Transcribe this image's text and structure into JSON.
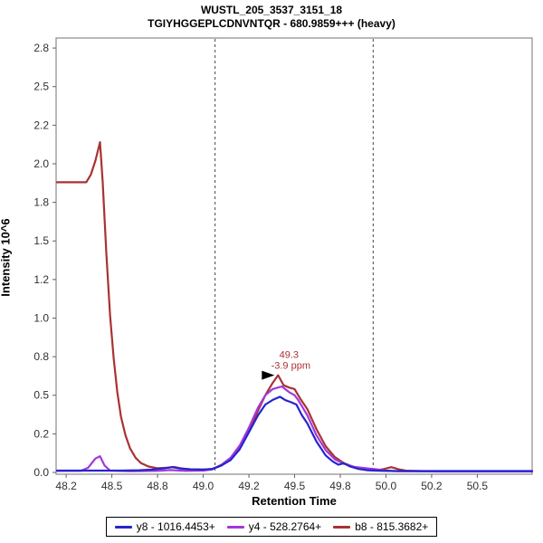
{
  "header": {
    "title": "WUSTL_205_3537_3151_18",
    "subtitle": "TGIYHGGEPLCDNVNTQR - 680.9859+++ (heavy)"
  },
  "chart_data": {
    "type": "line",
    "title": "WUSTL_205_3537_3151_18",
    "subtitle": "TGIYHGGEPLCDNVNTQR - 680.9859+++ (heavy)",
    "xlabel": "Retention Time",
    "ylabel": "Intensity 10^6",
    "xlim": [
      48.195,
      50.8
    ],
    "ylim": [
      0,
      2.815
    ],
    "grid": false,
    "legend_position": "bottom",
    "x_ticks": [
      {
        "label": "48.2",
        "value": 48.25
      },
      {
        "label": "48.5",
        "value": 48.5
      },
      {
        "label": "48.8",
        "value": 48.75
      },
      {
        "label": "49.0",
        "value": 49.0
      },
      {
        "label": "49.2",
        "value": 49.25
      },
      {
        "label": "49.5",
        "value": 49.5
      },
      {
        "label": "49.8",
        "value": 49.75
      },
      {
        "label": "50.0",
        "value": 50.0
      },
      {
        "label": "50.2",
        "value": 50.25
      },
      {
        "label": "50.5",
        "value": 50.5
      }
    ],
    "y_ticks": [
      {
        "label": "0.0",
        "value": 0.0
      },
      {
        "label": "0.2",
        "value": 0.25
      },
      {
        "label": "0.5",
        "value": 0.5
      },
      {
        "label": "0.8",
        "value": 0.75
      },
      {
        "label": "1.0",
        "value": 1.0
      },
      {
        "label": "1.2",
        "value": 1.25
      },
      {
        "label": "1.5",
        "value": 1.5
      },
      {
        "label": "1.8",
        "value": 1.75
      },
      {
        "label": "2.0",
        "value": 2.0
      },
      {
        "label": "2.2",
        "value": 2.25
      },
      {
        "label": "2.5",
        "value": 2.5
      },
      {
        "label": "2.8",
        "value": 2.75
      }
    ],
    "peak_boundaries": [
      49.065,
      49.93
    ],
    "annotation": {
      "rt_label": "49.3",
      "ppm_label": "-3.9 ppm",
      "anchor_x": 49.4,
      "anchor_y": 0.63,
      "color": "#A93232"
    },
    "series": [
      {
        "id": "b8",
        "name": "b8 - 815.3682+",
        "color": "#A93232",
        "points": [
          [
            48.2,
            1.88
          ],
          [
            48.36,
            1.88
          ],
          [
            48.385,
            1.93
          ],
          [
            48.41,
            2.02
          ],
          [
            48.435,
            2.14
          ],
          [
            48.45,
            1.88
          ],
          [
            48.47,
            1.42
          ],
          [
            48.49,
            1.02
          ],
          [
            48.51,
            0.74
          ],
          [
            48.53,
            0.52
          ],
          [
            48.55,
            0.36
          ],
          [
            48.575,
            0.24
          ],
          [
            48.6,
            0.155
          ],
          [
            48.63,
            0.095
          ],
          [
            48.66,
            0.06
          ],
          [
            48.7,
            0.038
          ],
          [
            48.75,
            0.027
          ],
          [
            48.8,
            0.03
          ],
          [
            48.84,
            0.035
          ],
          [
            48.88,
            0.026
          ],
          [
            48.93,
            0.02
          ],
          [
            49.0,
            0.018
          ],
          [
            49.05,
            0.022
          ],
          [
            49.1,
            0.045
          ],
          [
            49.15,
            0.085
          ],
          [
            49.2,
            0.16
          ],
          [
            49.25,
            0.27
          ],
          [
            49.3,
            0.4
          ],
          [
            49.34,
            0.5
          ],
          [
            49.38,
            0.58
          ],
          [
            49.41,
            0.63
          ],
          [
            49.44,
            0.565
          ],
          [
            49.47,
            0.55
          ],
          [
            49.5,
            0.54
          ],
          [
            49.53,
            0.48
          ],
          [
            49.57,
            0.41
          ],
          [
            49.62,
            0.28
          ],
          [
            49.67,
            0.17
          ],
          [
            49.72,
            0.1
          ],
          [
            49.77,
            0.06
          ],
          [
            49.83,
            0.033
          ],
          [
            49.9,
            0.018
          ],
          [
            49.95,
            0.014
          ],
          [
            49.99,
            0.022
          ],
          [
            50.03,
            0.034
          ],
          [
            50.07,
            0.02
          ],
          [
            50.11,
            0.011
          ],
          [
            50.2,
            0.008
          ],
          [
            50.5,
            0.008
          ],
          [
            50.8,
            0.008
          ]
        ]
      },
      {
        "id": "y4",
        "name": "y4 - 528.2764+",
        "color": "#A238DC",
        "points": [
          [
            48.2,
            0.01
          ],
          [
            48.33,
            0.01
          ],
          [
            48.37,
            0.03
          ],
          [
            48.41,
            0.09
          ],
          [
            48.435,
            0.105
          ],
          [
            48.46,
            0.045
          ],
          [
            48.49,
            0.012
          ],
          [
            48.6,
            0.008
          ],
          [
            48.75,
            0.01
          ],
          [
            48.82,
            0.015
          ],
          [
            48.9,
            0.01
          ],
          [
            49.0,
            0.012
          ],
          [
            49.05,
            0.02
          ],
          [
            49.1,
            0.05
          ],
          [
            49.15,
            0.095
          ],
          [
            49.2,
            0.175
          ],
          [
            49.25,
            0.29
          ],
          [
            49.3,
            0.42
          ],
          [
            49.34,
            0.5
          ],
          [
            49.38,
            0.54
          ],
          [
            49.43,
            0.557
          ],
          [
            49.47,
            0.52
          ],
          [
            49.5,
            0.5
          ],
          [
            49.52,
            0.47
          ],
          [
            49.57,
            0.37
          ],
          [
            49.62,
            0.24
          ],
          [
            49.67,
            0.145
          ],
          [
            49.72,
            0.085
          ],
          [
            49.77,
            0.055
          ],
          [
            49.83,
            0.035
          ],
          [
            49.9,
            0.026
          ],
          [
            49.95,
            0.02
          ],
          [
            50.0,
            0.012
          ],
          [
            50.06,
            0.008
          ],
          [
            50.3,
            0.006
          ],
          [
            50.8,
            0.006
          ]
        ]
      },
      {
        "id": "y8",
        "name": "y8 - 1016.4453+",
        "color": "#2525CE",
        "points": [
          [
            48.2,
            0.012
          ],
          [
            48.55,
            0.012
          ],
          [
            48.65,
            0.014
          ],
          [
            48.72,
            0.018
          ],
          [
            48.78,
            0.025
          ],
          [
            48.83,
            0.034
          ],
          [
            48.87,
            0.026
          ],
          [
            48.93,
            0.02
          ],
          [
            49.0,
            0.018
          ],
          [
            49.05,
            0.022
          ],
          [
            49.1,
            0.045
          ],
          [
            49.15,
            0.08
          ],
          [
            49.2,
            0.15
          ],
          [
            49.25,
            0.26
          ],
          [
            49.3,
            0.37
          ],
          [
            49.34,
            0.44
          ],
          [
            49.38,
            0.47
          ],
          [
            49.42,
            0.49
          ],
          [
            49.45,
            0.468
          ],
          [
            49.48,
            0.455
          ],
          [
            49.51,
            0.44
          ],
          [
            49.54,
            0.37
          ],
          [
            49.57,
            0.317
          ],
          [
            49.62,
            0.2
          ],
          [
            49.67,
            0.11
          ],
          [
            49.71,
            0.07
          ],
          [
            49.74,
            0.05
          ],
          [
            49.77,
            0.06
          ],
          [
            49.8,
            0.04
          ],
          [
            49.85,
            0.022
          ],
          [
            49.9,
            0.014
          ],
          [
            49.96,
            0.011
          ],
          [
            50.05,
            0.009
          ],
          [
            50.4,
            0.009
          ],
          [
            50.8,
            0.009
          ]
        ]
      }
    ],
    "legend": [
      {
        "id": "y8",
        "label": "y8 - 1016.4453+",
        "color": "#2525CE"
      },
      {
        "id": "y4",
        "label": "y4 - 528.2764+",
        "color": "#A238DC"
      },
      {
        "id": "b8",
        "label": "b8 - 815.3682+",
        "color": "#A93232"
      }
    ],
    "colors": {
      "plot_border": "#8A8A8A",
      "tick": "#606060",
      "boundary_line": "#444444",
      "marker": "#000000"
    }
  }
}
